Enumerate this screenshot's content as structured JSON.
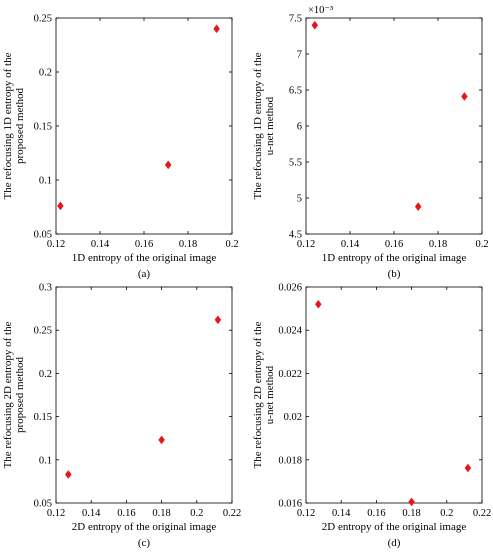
{
  "chart_data": [
    {
      "type": "scatter",
      "panel_label": "(a)",
      "xlabel": "1D entropy of the original image",
      "ylabel_lines": [
        "The refocusing 1D entropy of the",
        "proposed method"
      ],
      "xlim": [
        0.12,
        0.2
      ],
      "ylim": [
        0.05,
        0.25
      ],
      "xticks": [
        "0.12",
        "0.14",
        "0.16",
        "0.18",
        "0.2"
      ],
      "yticks": [
        "0.05",
        "0.1",
        "0.15",
        "0.2",
        "0.25"
      ],
      "exponent": "",
      "marker_color": "#e8161b",
      "series": [
        {
          "x": [
            0.122,
            0.171,
            0.193
          ],
          "y": [
            0.076,
            0.114,
            0.24
          ]
        }
      ]
    },
    {
      "type": "scatter",
      "panel_label": "(b)",
      "xlabel": "1D entropy of the original image",
      "ylabel_lines": [
        "The refocusing 1D entropy of the",
        "u-net method"
      ],
      "xlim": [
        0.12,
        0.2
      ],
      "ylim": [
        4.5,
        7.5
      ],
      "xticks": [
        "0.12",
        "0.14",
        "0.16",
        "0.18",
        "0.2"
      ],
      "yticks": [
        "4.5",
        "5",
        "5.5",
        "6",
        "6.5",
        "7",
        "7.5"
      ],
      "exponent": "×10⁻³",
      "marker_color": "#e8161b",
      "series": [
        {
          "x": [
            0.124,
            0.171,
            0.192
          ],
          "y": [
            7.4,
            4.88,
            6.41
          ]
        }
      ]
    },
    {
      "type": "scatter",
      "panel_label": "(c)",
      "xlabel": "2D entropy of the original image",
      "ylabel_lines": [
        "The refocusing 2D entropy of the",
        "proposed method"
      ],
      "xlim": [
        0.12,
        0.22
      ],
      "ylim": [
        0.05,
        0.3
      ],
      "xticks": [
        "0.12",
        "0.14",
        "0.16",
        "0.18",
        "0.2",
        "0.22"
      ],
      "yticks": [
        "0.05",
        "0.1",
        "0.15",
        "0.2",
        "0.25",
        "0.3"
      ],
      "exponent": "",
      "marker_color": "#e8161b",
      "series": [
        {
          "x": [
            0.127,
            0.18,
            0.212
          ],
          "y": [
            0.083,
            0.123,
            0.262
          ]
        }
      ]
    },
    {
      "type": "scatter",
      "panel_label": "(d)",
      "xlabel": "2D entropy of the original image",
      "ylabel_lines": [
        "The refocusing 2D entropy of the",
        "u-net method"
      ],
      "xlim": [
        0.12,
        0.22
      ],
      "ylim": [
        0.016,
        0.026
      ],
      "xticks": [
        "0.12",
        "0.14",
        "0.16",
        "0.18",
        "0.2",
        "0.22"
      ],
      "yticks": [
        "0.016",
        "0.018",
        "0.02",
        "0.022",
        "0.024",
        "0.026"
      ],
      "exponent": "",
      "marker_color": "#e8161b",
      "series": [
        {
          "x": [
            0.127,
            0.18,
            0.212
          ],
          "y": [
            0.0252,
            0.01605,
            0.01762
          ]
        }
      ]
    }
  ]
}
